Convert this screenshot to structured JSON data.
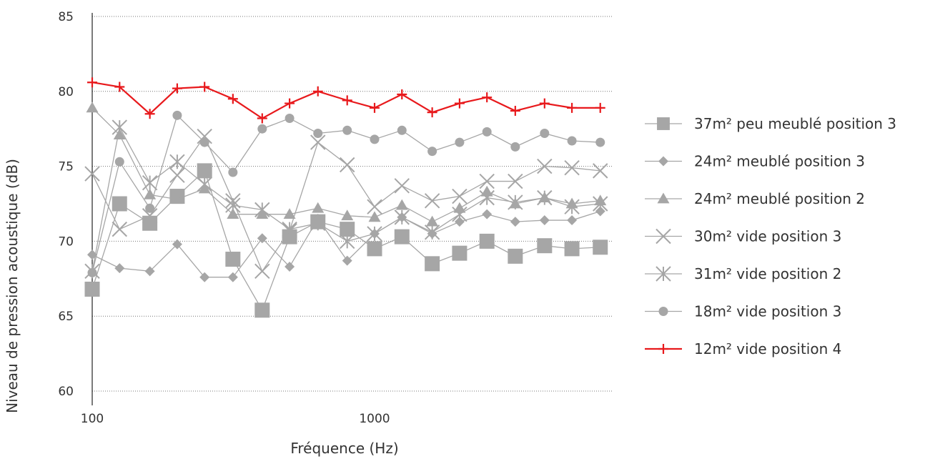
{
  "chart_data": {
    "type": "line",
    "xlabel": "Fréquence (Hz)",
    "ylabel": "Niveau de pression acoustique (dB)",
    "x_scale": "log",
    "xlim": [
      100,
      6300
    ],
    "ylim": [
      60,
      85
    ],
    "y_ticks": [
      60,
      65,
      70,
      75,
      80,
      85
    ],
    "x_ticks": [
      100,
      1000
    ],
    "grid": "horizontal dotted",
    "legend_position": "right",
    "x": [
      100,
      125,
      160,
      200,
      250,
      315,
      400,
      500,
      630,
      800,
      1000,
      1250,
      1600,
      2000,
      2500,
      3150,
      4000,
      5000,
      6300
    ],
    "series": [
      {
        "name": "37m² peu meublé position 3",
        "marker": "square",
        "color": "#a6a6a6",
        "values": [
          66.8,
          72.5,
          71.2,
          73.0,
          74.7,
          68.8,
          65.4,
          70.3,
          71.3,
          70.8,
          69.5,
          70.3,
          68.5,
          69.2,
          70.0,
          69.0,
          69.7,
          69.5,
          69.6
        ]
      },
      {
        "name": "24m² meublé position 3",
        "marker": "diamond",
        "color": "#a6a6a6",
        "values": [
          69.1,
          68.2,
          68.0,
          69.8,
          67.6,
          67.6,
          70.2,
          68.3,
          71.5,
          68.7,
          70.5,
          71.6,
          70.5,
          71.3,
          71.8,
          71.3,
          71.4,
          71.4,
          72.0
        ]
      },
      {
        "name": "24m² meublé position 2",
        "marker": "triangle",
        "color": "#a6a6a6",
        "values": [
          78.9,
          77.1,
          73.1,
          72.8,
          73.5,
          71.8,
          71.8,
          71.8,
          72.2,
          71.7,
          71.6,
          72.4,
          71.3,
          72.2,
          73.3,
          72.5,
          72.9,
          72.5,
          72.7
        ]
      },
      {
        "name": "30m² vide position 3",
        "marker": "x",
        "color": "#a6a6a6",
        "values": [
          74.5,
          70.8,
          71.7,
          74.4,
          77.0,
          72.7,
          68.0,
          70.7,
          76.6,
          75.1,
          72.3,
          73.7,
          72.7,
          73.0,
          74.0,
          74.0,
          75.0,
          74.9,
          74.7
        ]
      },
      {
        "name": "31m² vide position 2",
        "marker": "asterisk",
        "color": "#a6a6a6",
        "values": [
          68.0,
          77.6,
          73.9,
          75.3,
          73.8,
          72.4,
          72.1,
          70.8,
          71.2,
          70.0,
          70.5,
          71.6,
          70.6,
          71.8,
          72.9,
          72.6,
          72.9,
          72.3,
          72.5
        ]
      },
      {
        "name": "18m² vide position 3",
        "marker": "circle",
        "color": "#a6a6a6",
        "values": [
          67.9,
          75.3,
          72.2,
          78.4,
          76.6,
          74.6,
          77.5,
          78.2,
          77.2,
          77.4,
          76.8,
          77.4,
          76.0,
          76.6,
          77.3,
          76.3,
          77.2,
          76.7,
          76.6
        ]
      },
      {
        "name": "12m² vide position 4",
        "marker": "plus",
        "color": "#e8191c",
        "values": [
          80.6,
          80.3,
          78.5,
          80.2,
          80.3,
          79.5,
          78.2,
          79.2,
          80.0,
          79.4,
          78.9,
          79.8,
          78.6,
          79.2,
          79.6,
          78.7,
          79.2,
          78.9,
          78.9
        ]
      }
    ]
  }
}
